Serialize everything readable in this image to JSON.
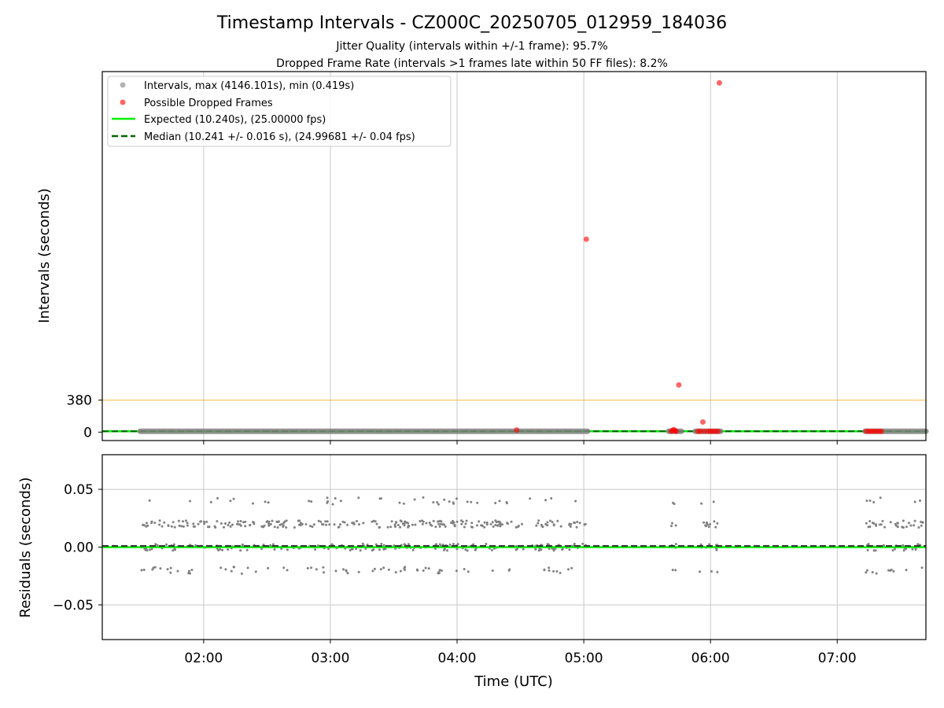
{
  "figure": {
    "title": "Timestamp Intervals - CZ000C_20250705_012959_184036",
    "subtitle_1": "Jitter Quality (intervals within +/-1 frame): 95.7%",
    "subtitle_2": "Dropped Frame Rate (intervals >1 frames late within 50 FF files): 8.2%"
  },
  "colors": {
    "intervals": "#808080",
    "dropped": "#ff0000",
    "expected": "#00ee00",
    "median": "#006400",
    "threshold": "#ffa500",
    "grid": "#c8c8c8"
  },
  "chart_data": [
    {
      "type": "scatter",
      "panel": "intervals",
      "ylabel": "Intervals (seconds)",
      "xlabel": "",
      "x_unit": "hours UTC",
      "xlim": [
        1.2,
        7.7
      ],
      "ylim": [
        -100,
        4280
      ],
      "yticks": [
        0,
        380
      ],
      "ytick_labels": [
        "0",
        "380"
      ],
      "xticks": [
        2,
        3,
        4,
        5,
        6,
        7
      ],
      "grid": "vertical",
      "legend_position": "upper-left",
      "legend": {
        "intervals": "Intervals, max (4146.101s), min (0.419s)",
        "dropped": "Possible Dropped Frames",
        "expected": "Expected (10.240s), (25.00000 fps)",
        "median": "Median (10.241 +/- 0.016 s), (24.99681 +/- 0.04 fps)"
      },
      "expected_value": 10.24,
      "median_value": 10.241,
      "threshold_value": 380,
      "interval_segments": [
        {
          "start": 1.5,
          "end": 5.03
        },
        {
          "start": 5.67,
          "end": 5.77
        },
        {
          "start": 5.88,
          "end": 6.08
        },
        {
          "start": 7.22,
          "end": 7.7
        }
      ],
      "dropped_points": [
        {
          "x": 4.47,
          "y": 25
        },
        {
          "x": 5.02,
          "y": 2290
        },
        {
          "x": 5.69,
          "y": 10
        },
        {
          "x": 5.7,
          "y": 20
        },
        {
          "x": 5.71,
          "y": 30
        },
        {
          "x": 5.72,
          "y": 15
        },
        {
          "x": 5.73,
          "y": 10
        },
        {
          "x": 5.75,
          "y": 560
        },
        {
          "x": 5.9,
          "y": 10
        },
        {
          "x": 5.92,
          "y": 10
        },
        {
          "x": 5.94,
          "y": 120
        },
        {
          "x": 5.95,
          "y": 10
        },
        {
          "x": 5.98,
          "y": 10
        },
        {
          "x": 6.0,
          "y": 10
        },
        {
          "x": 6.02,
          "y": 10
        },
        {
          "x": 6.04,
          "y": 10
        },
        {
          "x": 6.06,
          "y": 10
        },
        {
          "x": 6.07,
          "y": 4146.1
        },
        {
          "x": 7.23,
          "y": 10
        },
        {
          "x": 7.25,
          "y": 10
        },
        {
          "x": 7.27,
          "y": 10
        },
        {
          "x": 7.29,
          "y": 10
        },
        {
          "x": 7.31,
          "y": 10
        },
        {
          "x": 7.33,
          "y": 10
        },
        {
          "x": 7.35,
          "y": 10
        }
      ]
    },
    {
      "type": "scatter",
      "panel": "residuals",
      "ylabel": "Residuals (seconds)",
      "xlabel": "Time (UTC)",
      "x_unit": "hours UTC",
      "xlim": [
        1.2,
        7.7
      ],
      "ylim": [
        -0.08,
        0.08
      ],
      "yticks": [
        0.05,
        0.0,
        -0.05
      ],
      "ytick_labels": [
        "0.05",
        "0.00",
        "−0.05"
      ],
      "xticks": [
        2,
        3,
        4,
        5,
        6,
        7
      ],
      "xtick_labels": [
        "02:00",
        "03:00",
        "04:00",
        "05:00",
        "06:00",
        "07:00"
      ],
      "grid": "both",
      "expected_residual": 0.0,
      "median_residual": 0.001,
      "residual_bands": [
        {
          "level": 0.04,
          "density": 0.18
        },
        {
          "level": 0.02,
          "density": 1.0
        },
        {
          "level": 0.0,
          "density": 0.75
        },
        {
          "level": -0.02,
          "density": 0.3
        }
      ],
      "residual_segments": [
        {
          "start": 1.5,
          "end": 5.03
        },
        {
          "start": 5.68,
          "end": 5.73
        },
        {
          "start": 5.9,
          "end": 6.06
        },
        {
          "start": 7.22,
          "end": 7.7
        }
      ]
    }
  ]
}
